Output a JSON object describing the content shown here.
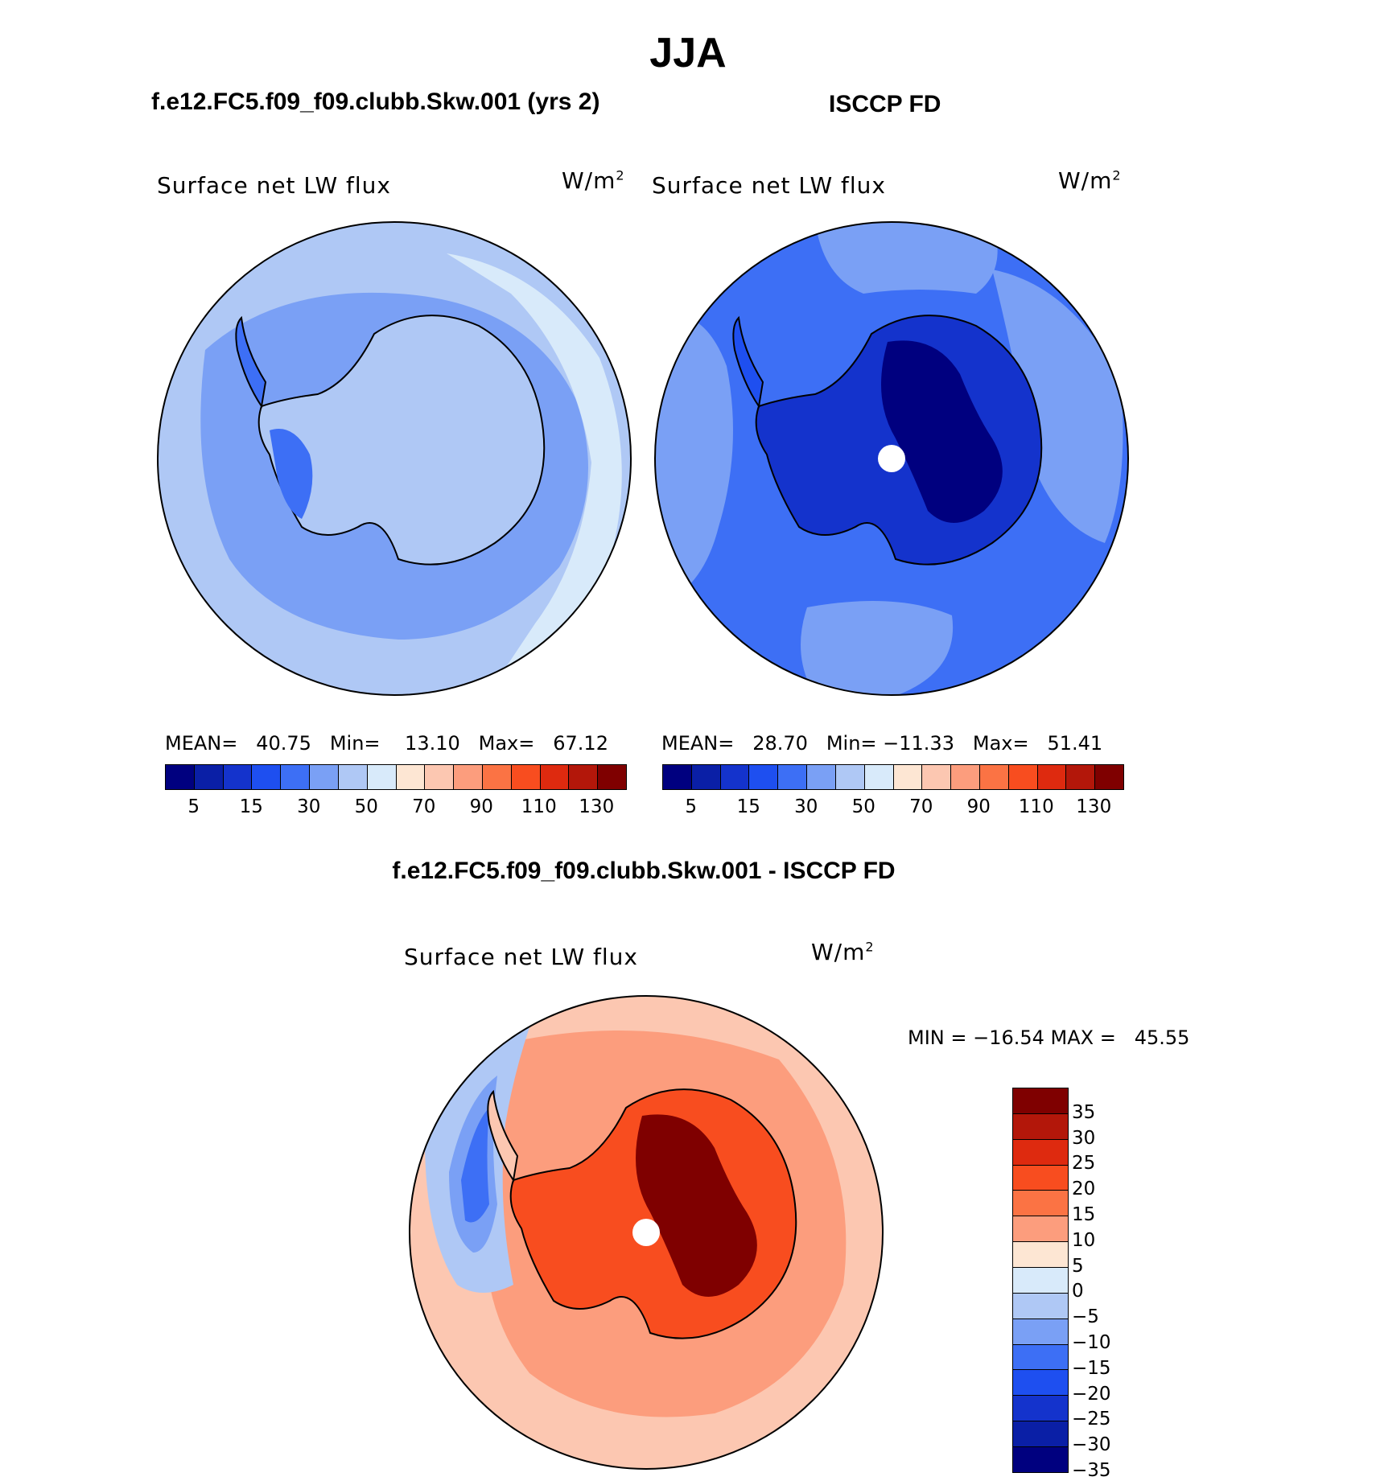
{
  "title": "JJA",
  "panels": {
    "model": {
      "title": "f.e12.FC5.f09_f09.clubb.Skw.001 (yrs 2)",
      "var_label": "Surface net LW flux",
      "units_base": "W/m",
      "units_exp": "2",
      "stats_text": "MEAN=   40.75   Min=    13.10   Max=   67.12"
    },
    "obs": {
      "title": "ISCCP FD",
      "var_label": "Surface net LW flux",
      "units_base": "W/m",
      "units_exp": "2",
      "stats_text": "MEAN=   28.70   Min= −11.33   Max=   51.41"
    },
    "diff": {
      "title": "f.e12.FC5.f09_f09.clubb.Skw.001 - ISCCP FD",
      "var_label": "Surface net LW flux",
      "units_base": "W/m",
      "units_exp": "2",
      "stats_text": "MIN = −16.54 MAX =   45.55"
    }
  },
  "colorbars": {
    "abs": {
      "colors": [
        "#00007f",
        "#0a1fa6",
        "#1433cc",
        "#1e4ff0",
        "#3d6ff5",
        "#7aa0f5",
        "#afc8f5",
        "#d8eafa",
        "#fde6d3",
        "#fcc7b1",
        "#fc9d7d",
        "#fb7344",
        "#f84d1f",
        "#de2a0f",
        "#b3170a",
        "#7f0000"
      ],
      "ticks": [
        "5",
        "15",
        "30",
        "50",
        "70",
        "90",
        "110",
        "130"
      ]
    },
    "diff": {
      "colors": [
        "#7f0000",
        "#b3170a",
        "#de2a0f",
        "#f84d1f",
        "#fb7344",
        "#fc9d7d",
        "#fde6d3",
        "#d8eafa",
        "#afc8f5",
        "#7aa0f5",
        "#3d6ff5",
        "#1e4ff0",
        "#1433cc",
        "#0a1fa6",
        "#00007f"
      ],
      "ticks": [
        "35",
        "30",
        "25",
        "20",
        "15",
        "10",
        "5",
        "0",
        "−5",
        "−10",
        "−15",
        "−20",
        "−25",
        "−30",
        "−35"
      ]
    }
  },
  "map_colors": {
    "model_bg": "#afc8f5",
    "model_mid": "#7aa0f5",
    "model_dark": "#3d6ff5",
    "model_light": "#d8eafa",
    "obs_bg": "#3d6ff5",
    "obs_light": "#7aa0f5",
    "obs_dark": "#1433cc",
    "obs_darkest": "#00007f",
    "diff_bg": "#fcc7b1",
    "diff_mid": "#fc9d7d",
    "diff_high": "#f84d1f",
    "diff_max": "#7f0000",
    "diff_neg": "#7aa0f5",
    "diff_negdark": "#3d6ff5"
  }
}
